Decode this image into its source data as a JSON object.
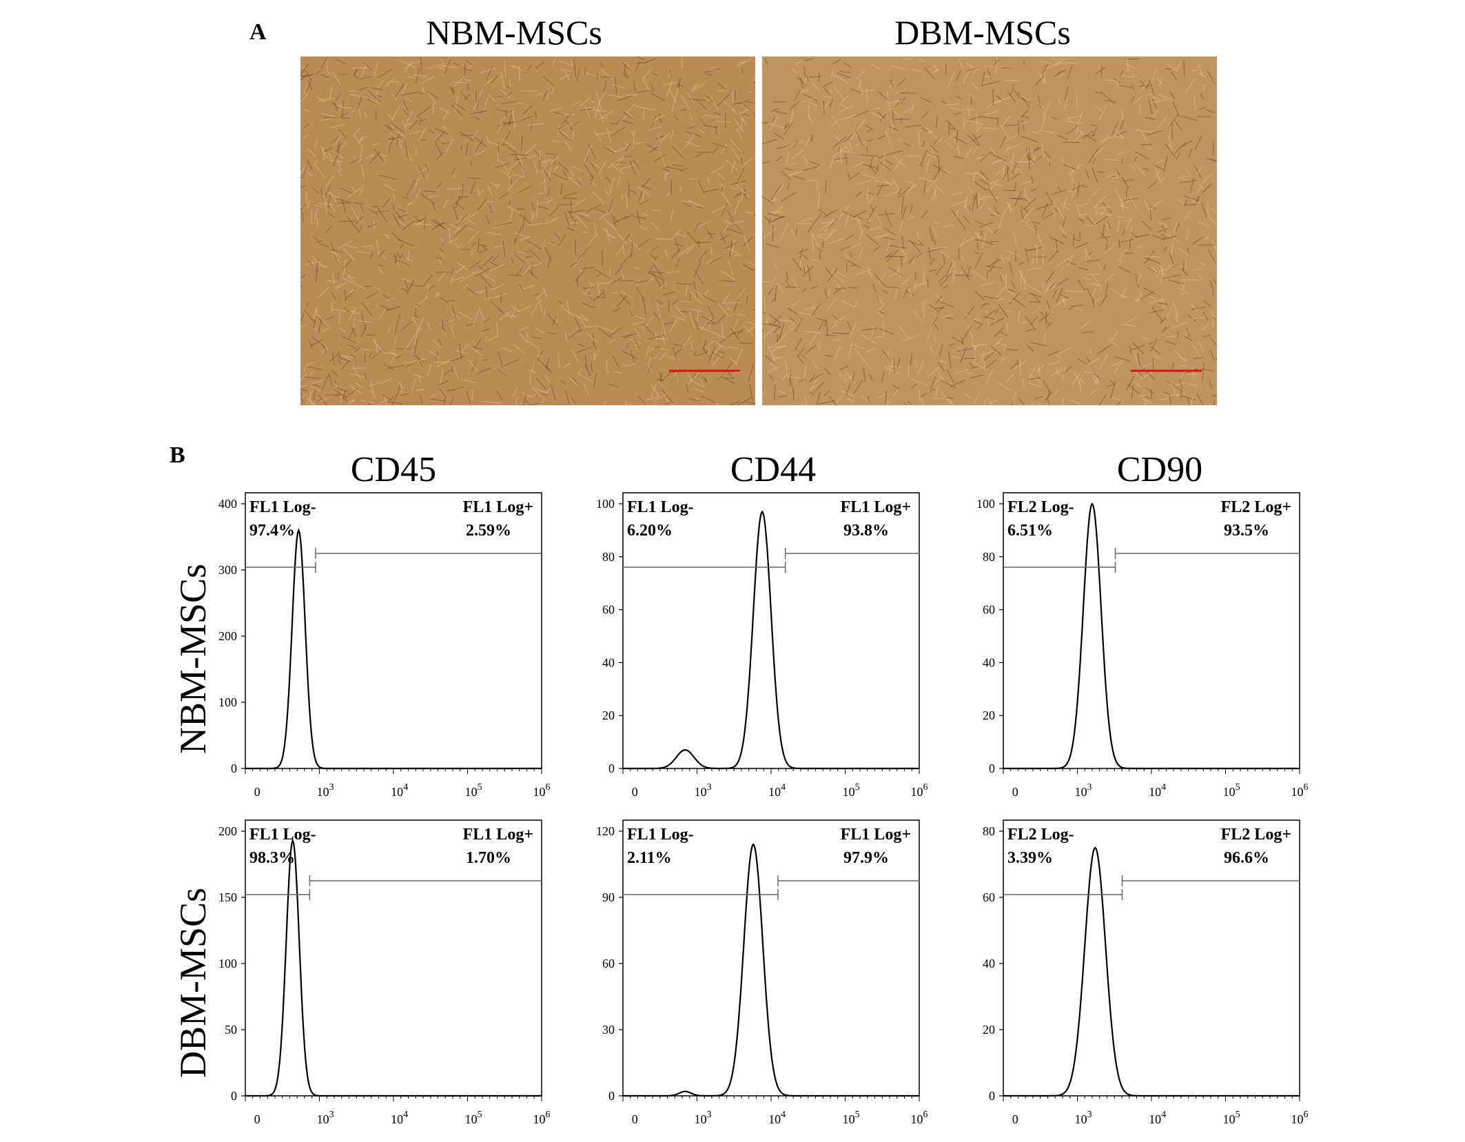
{
  "panel_a": {
    "letter": "A",
    "images": [
      {
        "title": "NBM-MSCs",
        "tone": "#b98c55"
      },
      {
        "title": "DBM-MSCs",
        "tone": "#c09660"
      }
    ]
  },
  "panel_b": {
    "letter": "B",
    "columns": [
      "CD45",
      "CD44",
      "CD90"
    ],
    "rows": [
      "NBM-MSCs",
      "DBM-MSCs"
    ]
  },
  "chart_data": [
    {
      "type": "line",
      "panel": "NBM-MSCs CD45",
      "ylim": [
        0,
        400
      ],
      "yticks": [
        0,
        100,
        200,
        300,
        400
      ],
      "xticks": [
        "0",
        "10^3",
        "10^4",
        "10^5",
        "10^6"
      ],
      "gate_neg": {
        "label": "FL1 Log-",
        "pct": "97.4%"
      },
      "gate_pos": {
        "label": "FL1 Log+",
        "pct": "2.59%"
      },
      "peaks": [
        {
          "x": 0.18,
          "y": 360,
          "w": 0.022
        }
      ]
    },
    {
      "type": "line",
      "panel": "NBM-MSCs CD44",
      "ylim": [
        0,
        100
      ],
      "yticks": [
        0,
        20,
        40,
        60,
        80,
        100
      ],
      "xticks": [
        "0",
        "10^3",
        "10^4",
        "10^5",
        "10^6"
      ],
      "gate_neg": {
        "label": "FL1 Log-",
        "pct": "6.20%"
      },
      "gate_pos": {
        "label": "FL1 Log+",
        "pct": "93.8%"
      },
      "peaks": [
        {
          "x": 0.47,
          "y": 97,
          "w": 0.03
        },
        {
          "x": 0.21,
          "y": 7,
          "w": 0.03
        }
      ]
    },
    {
      "type": "line",
      "panel": "NBM-MSCs CD90",
      "ylim": [
        0,
        100
      ],
      "yticks": [
        0,
        20,
        40,
        60,
        80,
        100
      ],
      "xticks": [
        "0",
        "10^3",
        "10^4",
        "10^5",
        "10^6"
      ],
      "gate_neg": {
        "label": "FL2 Log-",
        "pct": "6.51%"
      },
      "gate_pos": {
        "label": "FL2 Log+",
        "pct": "93.5%"
      },
      "peaks": [
        {
          "x": 0.3,
          "y": 100,
          "w": 0.03
        }
      ]
    },
    {
      "type": "line",
      "panel": "DBM-MSCs CD45",
      "ylim": [
        0,
        200
      ],
      "yticks": [
        0,
        50,
        100,
        150,
        200
      ],
      "xticks": [
        "0",
        "10^3",
        "10^4",
        "10^5",
        "10^6"
      ],
      "gate_neg": {
        "label": "FL1 Log-",
        "pct": "98.3%"
      },
      "gate_pos": {
        "label": "FL1 Log+",
        "pct": "1.70%"
      },
      "peaks": [
        {
          "x": 0.16,
          "y": 193,
          "w": 0.022
        }
      ]
    },
    {
      "type": "line",
      "panel": "DBM-MSCs CD44",
      "ylim": [
        0,
        120
      ],
      "yticks": [
        0,
        30,
        60,
        90,
        120
      ],
      "xticks": [
        "0",
        "10^3",
        "10^4",
        "10^5",
        "10^6"
      ],
      "gate_neg": {
        "label": "FL1 Log-",
        "pct": "2.11%"
      },
      "gate_pos": {
        "label": "FL1 Log+",
        "pct": "97.9%"
      },
      "peaks": [
        {
          "x": 0.44,
          "y": 114,
          "w": 0.032
        },
        {
          "x": 0.21,
          "y": 2,
          "w": 0.02
        }
      ]
    },
    {
      "type": "line",
      "panel": "DBM-MSCs CD90",
      "ylim": [
        0,
        80
      ],
      "yticks": [
        0,
        20,
        40,
        60,
        80
      ],
      "xticks": [
        "0",
        "10^3",
        "10^4",
        "10^5",
        "10^6"
      ],
      "gate_neg": {
        "label": "FL2 Log-",
        "pct": "3.39%"
      },
      "gate_pos": {
        "label": "FL2 Log+",
        "pct": "96.6%"
      },
      "peaks": [
        {
          "x": 0.31,
          "y": 75,
          "w": 0.035
        }
      ]
    }
  ]
}
